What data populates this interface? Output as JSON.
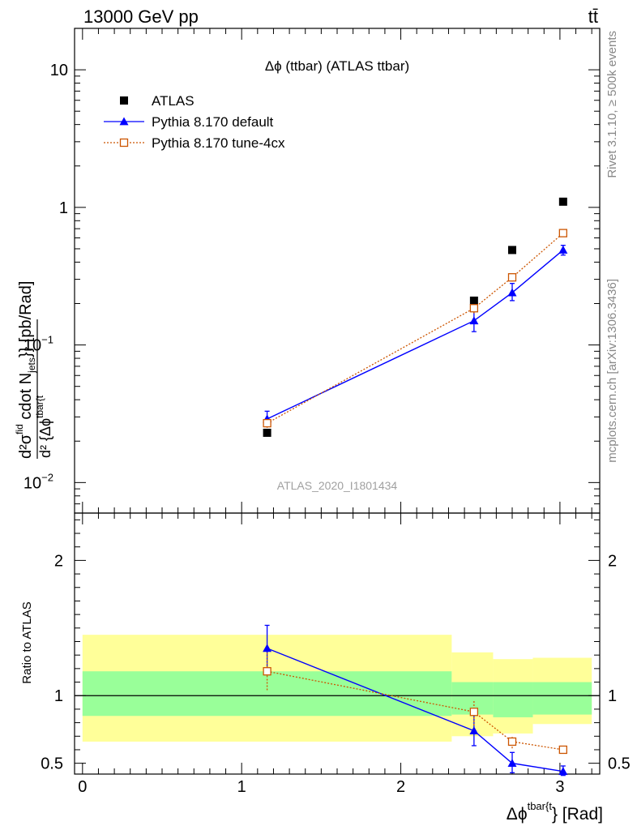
{
  "header": {
    "energy_label": "13000 GeV pp",
    "process_label": "tt̄"
  },
  "side_labels": {
    "rivet": "Rivet 3.1.10, ≥ 500k events",
    "url": "mcplots.cern.ch [arXiv:1306.3436]"
  },
  "chart_data": [
    {
      "type": "scatter",
      "title": "Δϕ (ttbar) (ATLAS ttbar)",
      "watermark": "ATLAS_2020_I1801434",
      "ylabel": "d²σ^fid / d² {Δϕ^tbar{t} cdot N_jets}} [pb/Rad]",
      "y_scale": "log",
      "ylim": [
        0.006,
        20
      ],
      "y_ticks": [
        {
          "v": 10,
          "label": "10",
          "sup": ""
        },
        {
          "v": 1,
          "label": "1",
          "sup": ""
        },
        {
          "v": 0.1,
          "label": "10",
          "sup": "−1"
        },
        {
          "v": 0.01,
          "label": "10",
          "sup": "−2"
        }
      ],
      "xlim": [
        -0.05,
        3.25
      ],
      "legend_position": "top-left",
      "series": [
        {
          "name": "ATLAS",
          "marker": "square-filled",
          "color": "#000000",
          "x": [
            1.16,
            2.46,
            2.7,
            3.02
          ],
          "y": [
            0.023,
            0.21,
            0.49,
            1.1
          ]
        },
        {
          "name": "Pythia 8.170 default",
          "marker": "triangle-filled",
          "line": "solid",
          "color": "#0000ff",
          "x": [
            1.16,
            2.46,
            2.7,
            3.02
          ],
          "y": [
            0.029,
            0.15,
            0.24,
            0.49
          ],
          "err_low": [
            0.026,
            0.125,
            0.21,
            0.45
          ],
          "err_high": [
            0.033,
            0.175,
            0.28,
            0.53
          ]
        },
        {
          "name": "Pythia 8.170 tune-4cx",
          "marker": "square-open",
          "line": "dotted",
          "color": "#cc5500",
          "x": [
            1.16,
            2.46,
            2.7,
            3.02
          ],
          "y": [
            0.027,
            0.185,
            0.31,
            0.65
          ],
          "err_low": [
            0.025,
            0.17,
            0.29,
            0.63
          ],
          "err_high": [
            0.029,
            0.2,
            0.33,
            0.67
          ]
        }
      ]
    },
    {
      "type": "scatter",
      "ylabel": "Ratio to ATLAS",
      "xlabel": "Δϕ^tbar{t}} [Rad]",
      "ylim": [
        0.42,
        2.35
      ],
      "y_ticks": [
        0.5,
        1,
        2
      ],
      "xlim": [
        -0.05,
        3.25
      ],
      "x_ticks": [
        0,
        1,
        2,
        3
      ],
      "reference": 1,
      "uncertainty_bands": [
        {
          "x_from": 0.0,
          "x_to": 2.32,
          "inner": [
            0.85,
            1.18
          ],
          "outer": [
            0.66,
            1.45
          ]
        },
        {
          "x_from": 2.32,
          "x_to": 2.58,
          "inner": [
            0.86,
            1.1
          ],
          "outer": [
            0.7,
            1.32
          ]
        },
        {
          "x_from": 2.58,
          "x_to": 2.83,
          "inner": [
            0.84,
            1.1
          ],
          "outer": [
            0.72,
            1.27
          ]
        },
        {
          "x_from": 2.83,
          "x_to": 3.2,
          "inner": [
            0.86,
            1.1
          ],
          "outer": [
            0.79,
            1.28
          ]
        }
      ],
      "band_colors": {
        "inner": "#99ff99",
        "outer": "#ffff99"
      },
      "series": [
        {
          "name": "Pythia 8.170 default",
          "color": "#0000ff",
          "marker": "triangle-filled",
          "line": "solid",
          "x": [
            1.16,
            2.46,
            2.7,
            3.02
          ],
          "y": [
            1.35,
            0.74,
            0.5,
            0.44
          ],
          "err_low": [
            1.2,
            0.63,
            0.43,
            0.41
          ],
          "err_high": [
            1.52,
            0.87,
            0.58,
            0.48
          ]
        },
        {
          "name": "Pythia 8.170 tune-4cx",
          "color": "#cc5500",
          "marker": "square-open",
          "line": "dotted",
          "x": [
            1.16,
            2.46,
            2.7,
            3.02
          ],
          "y": [
            1.18,
            0.88,
            0.66,
            0.6
          ],
          "err_low": [
            1.04,
            0.78,
            0.61,
            0.57
          ],
          "err_high": [
            1.32,
            0.97,
            0.7,
            0.63
          ]
        }
      ]
    }
  ]
}
